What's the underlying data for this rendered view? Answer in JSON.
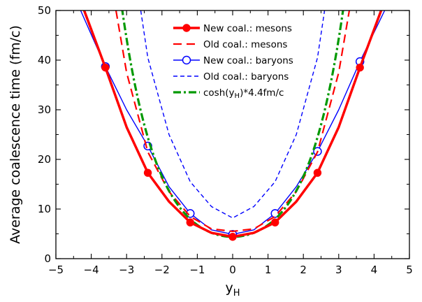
{
  "chart_data": {
    "type": "line",
    "title": "",
    "xlabel": "y",
    "xlabel_sub": "H",
    "ylabel": "Average coalescence time (fm/c)",
    "xlim": [
      -5,
      5
    ],
    "ylim": [
      0,
      50
    ],
    "x_ticks": [
      -5,
      -4,
      -3,
      -2,
      -1,
      0,
      1,
      2,
      3,
      4,
      5
    ],
    "x_tick_labels": [
      "−5",
      "−4",
      "−3",
      "−2",
      "−1",
      "0",
      "1",
      "2",
      "3",
      "4",
      "5"
    ],
    "y_ticks": [
      0,
      10,
      20,
      30,
      40,
      50
    ],
    "y_tick_labels": [
      "0",
      "10",
      "20",
      "30",
      "40",
      "50"
    ],
    "grid": false,
    "legend_position": "top-center",
    "series": [
      {
        "name": "New coal.: mesons",
        "color": "#ff0000",
        "style": "solid-thick",
        "marker": "filled-circle",
        "x": [
          -4.2,
          -3.6,
          -3.0,
          -2.4,
          -1.8,
          -1.2,
          -0.6,
          0,
          0.6,
          1.2,
          1.8,
          2.4,
          3.0,
          3.6,
          4.2
        ],
        "y": [
          50,
          38.5,
          26.5,
          17.3,
          11.5,
          7.3,
          5.2,
          4.4,
          5.2,
          7.3,
          11.5,
          17.3,
          26.5,
          38.5,
          50
        ],
        "marker_x": [
          -3.6,
          -2.4,
          -1.2,
          0,
          1.2,
          2.4,
          3.6
        ],
        "marker_y": [
          38.5,
          17.3,
          7.3,
          4.4,
          7.3,
          17.3,
          38.5
        ]
      },
      {
        "name": "Old coal.: mesons",
        "color": "#ff0000",
        "style": "long-dash",
        "x": [
          -3.3,
          -3.0,
          -2.4,
          -1.8,
          -1.2,
          -0.6,
          0,
          0.6,
          1.2,
          1.8,
          2.4,
          3.0,
          3.3
        ],
        "y": [
          50,
          37.5,
          21.5,
          13.5,
          8.5,
          6.0,
          5.5,
          6.0,
          8.5,
          13.5,
          21.5,
          37.5,
          50
        ]
      },
      {
        "name": "New coal.: baryons",
        "color": "#0000ff",
        "style": "solid-thin",
        "marker": "open-circle",
        "x": [
          -4.3,
          -3.6,
          -3.0,
          -2.4,
          -1.8,
          -1.2,
          -0.6,
          0,
          0.6,
          1.2,
          1.8,
          2.4,
          3.0,
          3.6,
          4.3
        ],
        "y": [
          50,
          38.7,
          30.0,
          22.7,
          14.5,
          9.1,
          5.8,
          4.9,
          5.8,
          9.1,
          14.5,
          21.6,
          30.0,
          39.7,
          50
        ],
        "marker_x": [
          -3.6,
          -2.4,
          -1.2,
          0,
          1.2,
          2.4,
          3.6
        ],
        "marker_y": [
          38.7,
          22.7,
          9.1,
          4.9,
          9.1,
          21.6,
          39.7
        ]
      },
      {
        "name": "Old coal.: baryons",
        "color": "#0000ff",
        "style": "short-dash",
        "x": [
          -2.6,
          -2.4,
          -1.8,
          -1.2,
          -0.6,
          0,
          0.6,
          1.2,
          1.8,
          2.4,
          2.6
        ],
        "y": [
          50,
          40.5,
          25.0,
          15.5,
          10.5,
          8.2,
          10.5,
          15.5,
          25.0,
          40.5,
          50
        ]
      },
      {
        "name": "cosh(y_H)*4.4fm/c",
        "legend_main": "cosh(y",
        "legend_sub": "H",
        "legend_tail": ")*4.4fm/c",
        "color": "#009900",
        "style": "dash-dot",
        "function": "cosh",
        "scale": 4.4
      }
    ]
  }
}
